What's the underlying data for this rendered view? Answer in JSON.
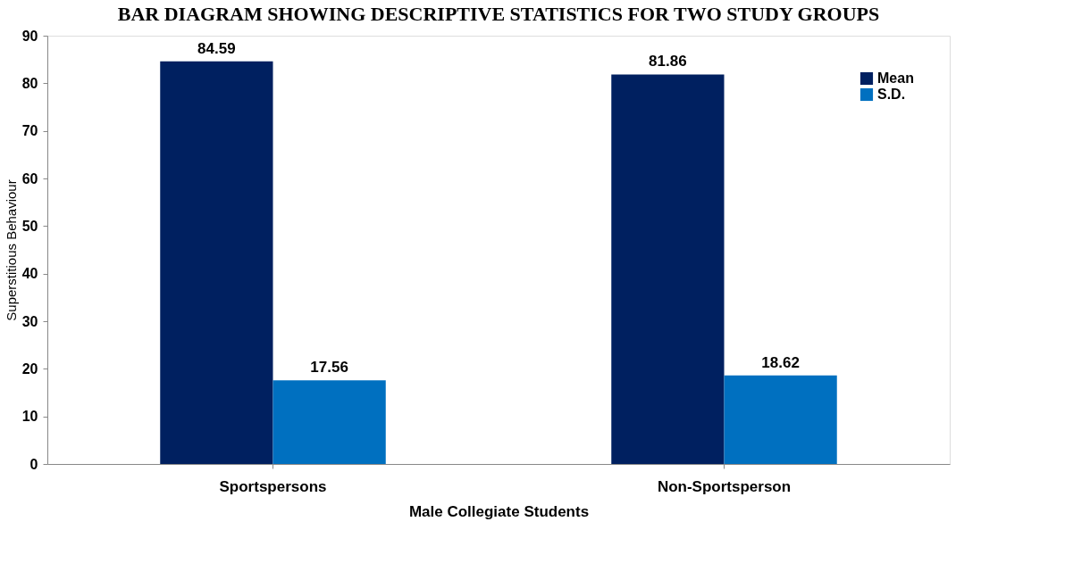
{
  "chart_data": {
    "type": "bar",
    "title": "BAR DIAGRAM SHOWING DESCRIPTIVE STATISTICS FOR TWO STUDY GROUPS",
    "xlabel": "Male Collegiate Students",
    "ylabel": "Superstitious Behaviour",
    "categories": [
      "Sportspersons",
      "Non-Sportsperson"
    ],
    "series": [
      {
        "name": "Mean",
        "color": "#002060",
        "values": [
          84.59,
          81.86
        ]
      },
      {
        "name": "S.D.",
        "color": "#0070c0",
        "values": [
          17.56,
          18.62
        ]
      }
    ],
    "ylim": [
      0,
      90
    ],
    "yticks": [
      0,
      10,
      20,
      30,
      40,
      50,
      60,
      70,
      80,
      90
    ],
    "grid": false,
    "legend": "top right",
    "data_labels": true
  }
}
